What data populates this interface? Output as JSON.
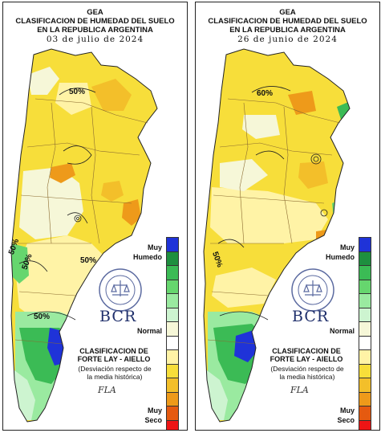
{
  "legend": {
    "muy": "Muy",
    "humedo": "Humedo",
    "normal": "Normal",
    "seco": "Seco",
    "colors": [
      "#1f33d8",
      "#1e8f3f",
      "#3bbb55",
      "#66d66e",
      "#9aeaa0",
      "#cdf4d0",
      "#f6f7d8",
      "#ffffff",
      "#fff3a6",
      "#f7de3a",
      "#f3bf2a",
      "#ee9a1a",
      "#e55a10",
      "#ee1515"
    ]
  },
  "left": {
    "title": "GEA",
    "subtitle1": "CLASIFICACION DE HUMEDAD DEL SUELO",
    "subtitle2": "EN LA REPUBLICA ARGENTINA",
    "date": "03 de julio de 2024",
    "iso_a": "50%",
    "iso_b": "50%",
    "iso_c": "50%",
    "iso_d": "50%",
    "iso_e": "50%",
    "bcr": "BCR",
    "clas1": "CLASIFICACION DE",
    "clas2": "FORTE LAY - AIELLO",
    "desv1": "(Desviación respecto de",
    "desv2": "la media histórica)",
    "signature": "FLA"
  },
  "right": {
    "title": "GEA",
    "subtitle1": "CLASIFICACION DE HUMEDAD DEL SUELO",
    "subtitle2": "EN LA REPUBLICA ARGENTINA",
    "date": "26 de junio de 2024",
    "iso_a": "60%",
    "iso_b": "50%",
    "bcr": "BCR",
    "clas1": "CLASIFICACION DE",
    "clas2": "FORTE LAY - AIELLO",
    "desv1": "(Desviación respecto de",
    "desv2": "la media histórica)",
    "signature": "FLA"
  }
}
